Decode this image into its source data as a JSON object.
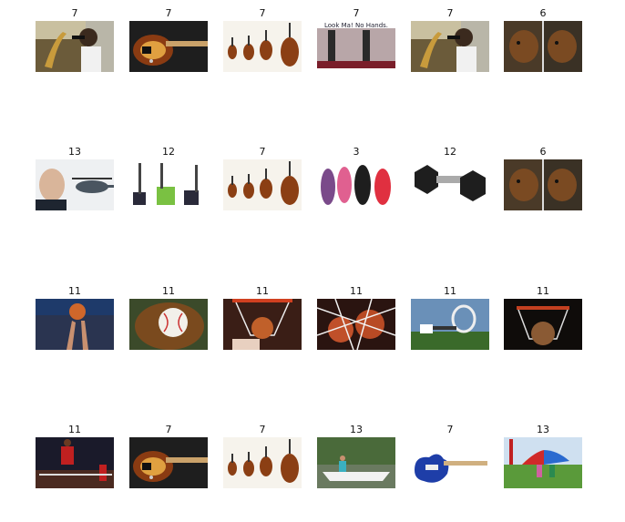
{
  "grid": {
    "rows": [
      {
        "cells": [
          {
            "label": "7",
            "image": "saxophone-player"
          },
          {
            "label": "7",
            "image": "bass-guitar"
          },
          {
            "label": "7",
            "image": "violin-family"
          },
          {
            "label": "7",
            "image": "look-ma-no-hands-recorder",
            "caption": "Look Ma! No Hands."
          },
          {
            "label": "7",
            "image": "saxophone-player"
          },
          {
            "label": "6",
            "image": "bear-pair"
          }
        ]
      },
      {
        "cells": [
          {
            "label": "13",
            "image": "man-and-helicopter"
          },
          {
            "label": "12",
            "image": "snow-blowers"
          },
          {
            "label": "7",
            "image": "violin-family"
          },
          {
            "label": "3",
            "image": "flip-flops"
          },
          {
            "label": "12",
            "image": "dumbbell"
          },
          {
            "label": "6",
            "image": "bear-pair"
          }
        ]
      },
      {
        "cells": [
          {
            "label": "11",
            "image": "basketball-hands"
          },
          {
            "label": "11",
            "image": "baseball-glove"
          },
          {
            "label": "11",
            "image": "basketball-hoop"
          },
          {
            "label": "11",
            "image": "basketballs-in-net"
          },
          {
            "label": "11",
            "image": "tennis-racket"
          },
          {
            "label": "11",
            "image": "ball-in-hoop-dark"
          }
        ]
      },
      {
        "cells": [
          {
            "label": "11",
            "image": "basketball-dunk"
          },
          {
            "label": "7",
            "image": "bass-guitar"
          },
          {
            "label": "7",
            "image": "violin-family"
          },
          {
            "label": "13",
            "image": "canoe-on-river"
          },
          {
            "label": "7",
            "image": "electric-guitar-blue"
          },
          {
            "label": "13",
            "image": "kids-with-umbrella-tent"
          }
        ]
      }
    ]
  },
  "colors": {
    "background": "#ffffff",
    "label_text": "#111111"
  }
}
